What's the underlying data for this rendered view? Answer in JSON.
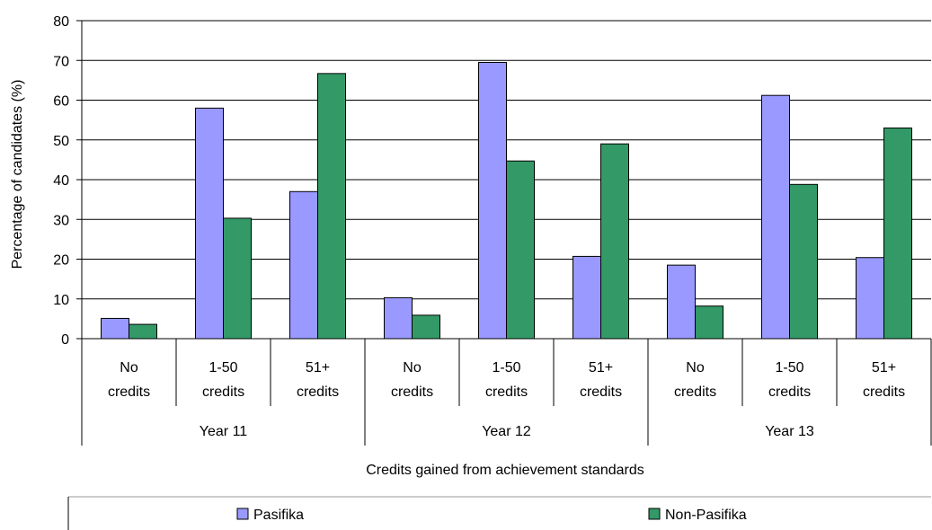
{
  "chart_data": {
    "type": "bar",
    "title": "",
    "ylabel": "Percentage of candidates (%)",
    "xlabel": "Credits gained from achievement standards",
    "ylim": [
      0,
      80
    ],
    "yticks": [
      "0",
      "10",
      "20",
      "30",
      "40",
      "50",
      "60",
      "70",
      "80"
    ],
    "grid": true,
    "legend_position": "bottom",
    "groups": [
      "Year 11",
      "Year 12",
      "Year 13"
    ],
    "categories": [
      {
        "line1": "No",
        "line2": "credits",
        "group": 0
      },
      {
        "line1": "1-50",
        "line2": "credits",
        "group": 0
      },
      {
        "line1": "51+",
        "line2": "credits",
        "group": 0
      },
      {
        "line1": "No",
        "line2": "credits",
        "group": 1
      },
      {
        "line1": "1-50",
        "line2": "credits",
        "group": 1
      },
      {
        "line1": "51+",
        "line2": "credits",
        "group": 1
      },
      {
        "line1": "No",
        "line2": "credits",
        "group": 2
      },
      {
        "line1": "1-50",
        "line2": "credits",
        "group": 2
      },
      {
        "line1": "51+",
        "line2": "credits",
        "group": 2
      }
    ],
    "series": [
      {
        "name": "Pasifika",
        "color": "#9999ff",
        "values": [
          5.1,
          58.0,
          37.0,
          10.3,
          69.5,
          20.7,
          18.5,
          61.2,
          20.4
        ]
      },
      {
        "name": "Non-Pasifika",
        "color": "#339966",
        "values": [
          3.6,
          30.3,
          66.7,
          5.9,
          44.7,
          49.0,
          8.2,
          38.8,
          53.0
        ]
      }
    ]
  }
}
